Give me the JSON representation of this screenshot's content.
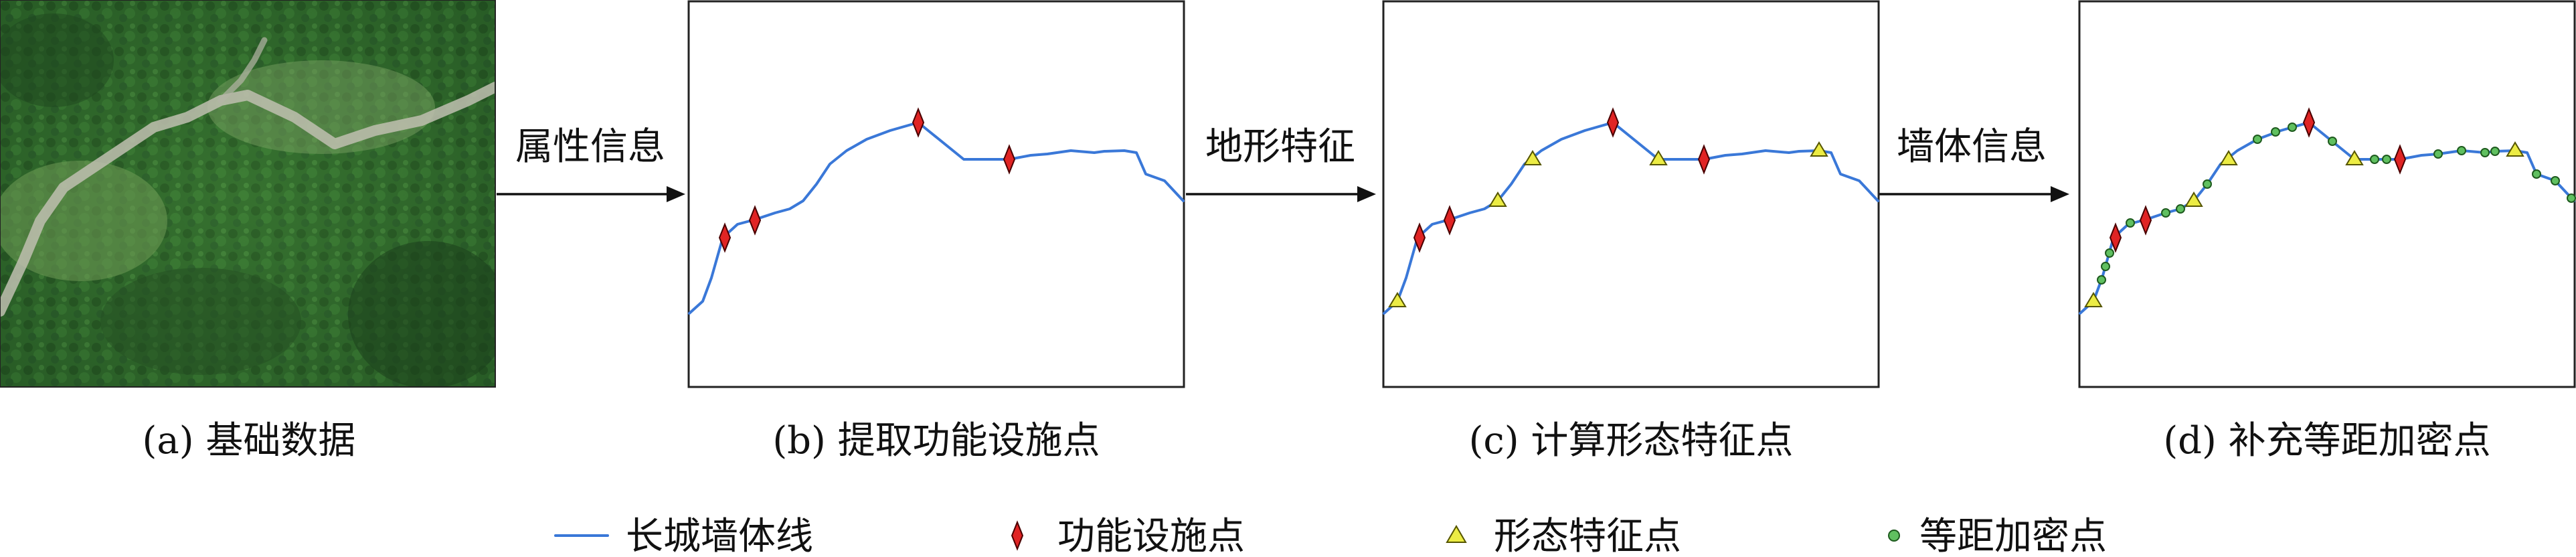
{
  "steps": {
    "step1": "属性信息",
    "step2": "地形特征",
    "step3": "墙体信息"
  },
  "captions": {
    "a": "(a) 基础数据",
    "b": "(b) 提取功能设施点",
    "c": "(c) 计算形态特征点",
    "d": "(d) 补充等距加密点"
  },
  "legend": {
    "wall": "长城墙体线",
    "facility": "功能设施点",
    "feature": "形态特征点",
    "dense": "等距加密点"
  },
  "colors": {
    "wall_line": "#3a78d8",
    "facility_marker": "#e02424",
    "feature_marker": "#ecec44",
    "dense_marker": "#60c060"
  },
  "icons": {
    "facility": "red-diamond",
    "feature": "yellow-triangle",
    "dense": "green-circle"
  }
}
